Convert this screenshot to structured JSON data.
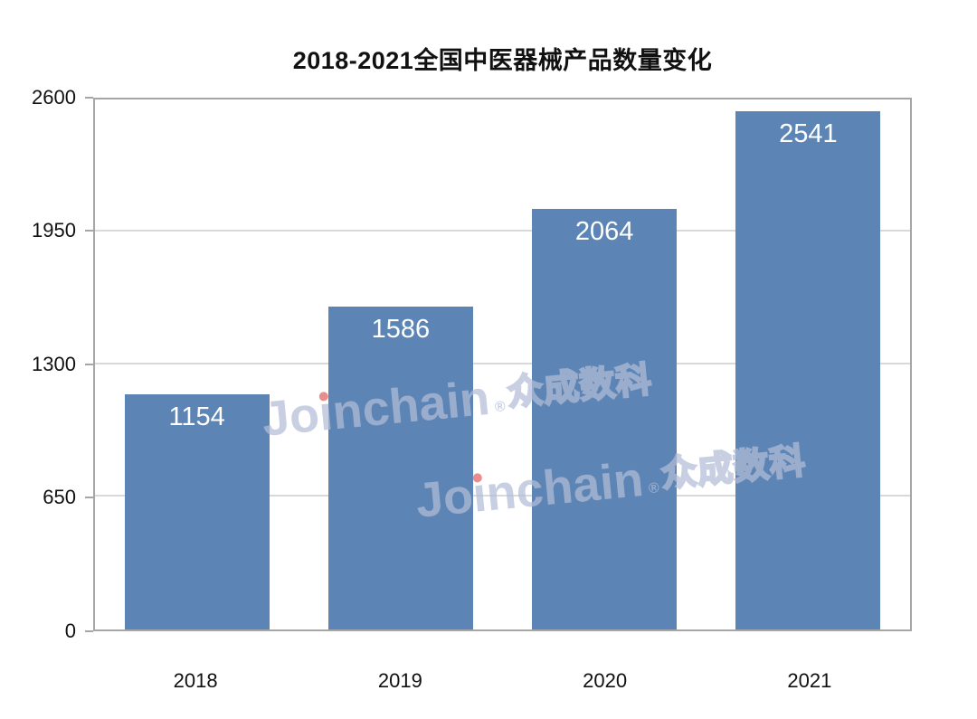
{
  "chart_data": {
    "type": "bar",
    "title": "2018-2021全国中医器械产品数量变化",
    "categories": [
      "2018",
      "2019",
      "2020",
      "2021"
    ],
    "values": [
      1154,
      1586,
      2064,
      2541
    ],
    "xlabel": "",
    "ylabel": "",
    "ylim": [
      0,
      2600
    ],
    "y_ticks": [
      0,
      650,
      1300,
      1950,
      2600
    ],
    "grid": true,
    "legend": false,
    "bar_color": "#5C85B6",
    "value_label_color": "#ffffff"
  },
  "colors": {
    "plot_border": "#a6a6a6",
    "grid_line": "#d9d9d9",
    "axis_text": "#111111",
    "watermark_text": "#B3BDD7",
    "watermark_dot": "#E16060"
  },
  "watermark": {
    "text": "Joinchain®众成数科",
    "parts": {
      "pre": "Jo",
      "i_dotless": "ı",
      "post": "nchain",
      "reg": "®",
      "cn": "众成数科"
    }
  }
}
